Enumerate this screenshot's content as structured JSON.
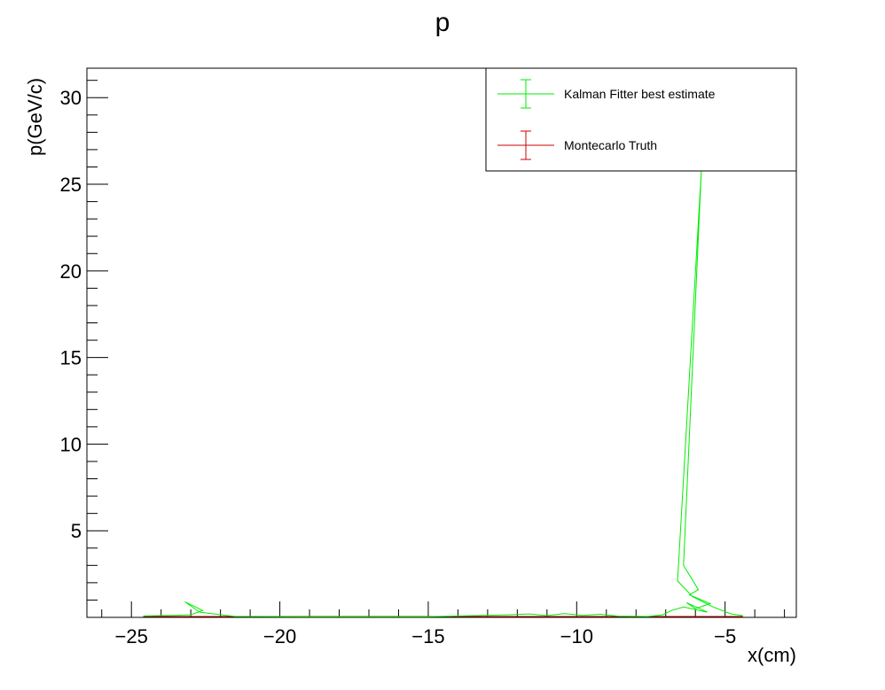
{
  "chart_data": {
    "type": "line",
    "title": "p",
    "xlabel": "x(cm)",
    "ylabel": "p(GeV/c)",
    "xlim": [
      -26.5,
      -2.6
    ],
    "ylim": [
      0,
      31.7
    ],
    "x_ticks": [
      -25,
      -20,
      -15,
      -10,
      -5
    ],
    "x_tick_labels": [
      "−25",
      "−20",
      "−15",
      "−10",
      "−5"
    ],
    "y_ticks": [
      5,
      10,
      15,
      20,
      25,
      30
    ],
    "y_tick_labels": [
      "5",
      "10",
      "15",
      "20",
      "25",
      "30"
    ],
    "grid": false,
    "legend_position": "top-right",
    "series": [
      {
        "name": "Kalman Fitter best estimate",
        "color": "#00ee00",
        "points": [
          [
            -24.6,
            0.08
          ],
          [
            -23.6,
            0.12
          ],
          [
            -23.0,
            0.15
          ],
          [
            -22.6,
            0.4
          ],
          [
            -23.2,
            0.9
          ],
          [
            -22.7,
            0.3
          ],
          [
            -21.5,
            0.05
          ],
          [
            -19.0,
            0.04
          ],
          [
            -15.0,
            0.04
          ],
          [
            -12.3,
            0.15
          ],
          [
            -11.6,
            0.2
          ],
          [
            -11.0,
            0.1
          ],
          [
            -10.4,
            0.22
          ],
          [
            -9.8,
            0.12
          ],
          [
            -9.2,
            0.18
          ],
          [
            -8.6,
            0.07
          ],
          [
            -7.6,
            0.05
          ],
          [
            -7.1,
            0.15
          ],
          [
            -6.8,
            0.4
          ],
          [
            -6.4,
            0.6
          ],
          [
            -5.6,
            0.3
          ],
          [
            -6.3,
            0.85
          ],
          [
            -6.0,
            0.5
          ],
          [
            -5.5,
            0.8
          ],
          [
            -6.2,
            1.3
          ],
          [
            -5.9,
            1.6
          ],
          [
            -6.4,
            3.0
          ],
          [
            -5.8,
            25.8
          ],
          [
            -6.6,
            2.1
          ],
          [
            -6.1,
            1.2
          ],
          [
            -5.4,
            0.6
          ],
          [
            -4.8,
            0.2
          ],
          [
            -4.4,
            0.1
          ]
        ]
      },
      {
        "name": "Montecarlo Truth",
        "color": "#cc0000",
        "points": [
          [
            -24.6,
            0.05
          ],
          [
            -20.0,
            0.05
          ],
          [
            -15.0,
            0.05
          ],
          [
            -10.0,
            0.05
          ],
          [
            -7.5,
            0.05
          ],
          [
            -6.0,
            0.05
          ],
          [
            -4.4,
            0.05
          ]
        ]
      }
    ]
  }
}
